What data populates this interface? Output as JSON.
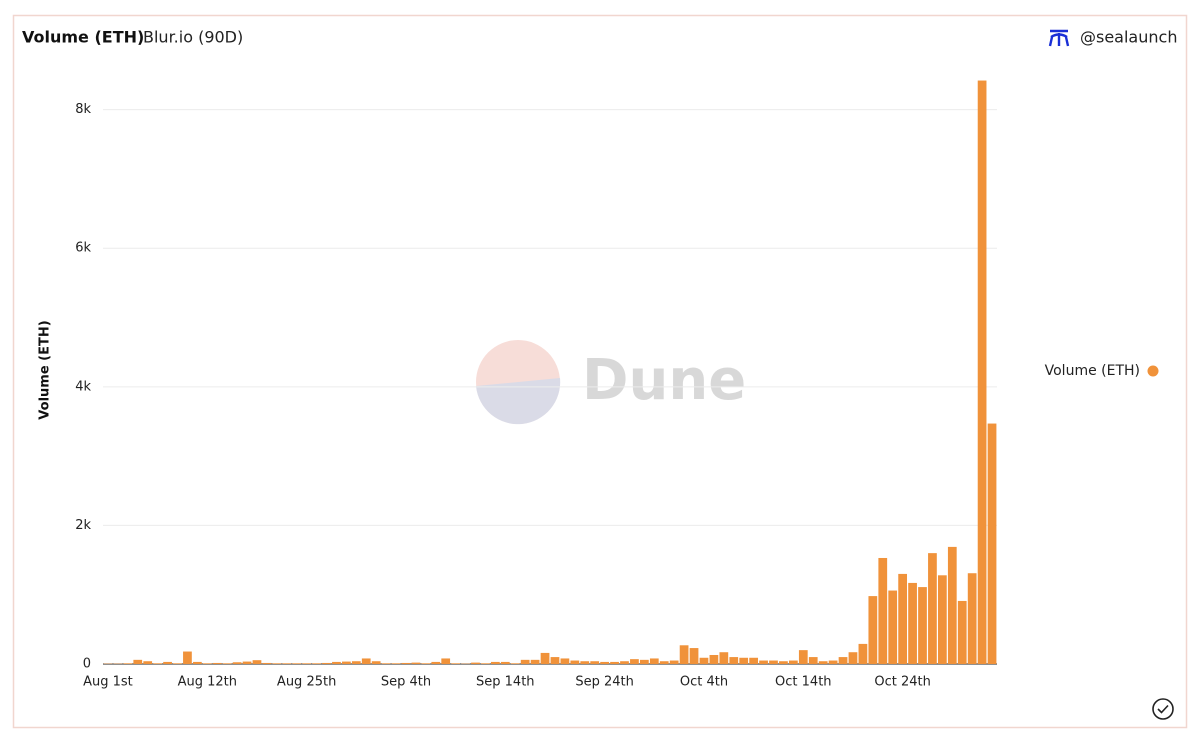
{
  "chart_data": {
    "type": "bar",
    "title": "Volume (ETH)",
    "subtitle": "Blur.io (90D)",
    "author": "@sealaunch",
    "watermark": "Dune",
    "y_label": "Volume (ETH)",
    "categories": [
      "Aug 1st",
      null,
      null,
      null,
      null,
      null,
      null,
      null,
      null,
      null,
      "Aug 12th",
      null,
      null,
      null,
      null,
      null,
      null,
      null,
      null,
      null,
      "Aug 25th",
      null,
      null,
      null,
      null,
      null,
      null,
      null,
      null,
      null,
      "Sep 4th",
      null,
      null,
      null,
      null,
      null,
      null,
      null,
      null,
      null,
      "Sep 14th",
      null,
      null,
      null,
      null,
      null,
      null,
      null,
      null,
      null,
      "Sep 24th",
      null,
      null,
      null,
      null,
      null,
      null,
      null,
      null,
      null,
      "Oct 4th",
      null,
      null,
      null,
      null,
      null,
      null,
      null,
      null,
      null,
      "Oct 14th",
      null,
      null,
      null,
      null,
      null,
      null,
      null,
      null,
      null,
      "Oct 24th",
      null,
      null,
      null,
      null,
      null,
      null,
      null,
      null,
      null
    ],
    "series": [
      {
        "name": "Volume (ETH)",
        "color": "#f0923a",
        "values": [
          5,
          5,
          10,
          60,
          40,
          10,
          30,
          10,
          180,
          30,
          10,
          15,
          10,
          25,
          35,
          55,
          15,
          10,
          10,
          10,
          10,
          10,
          15,
          30,
          35,
          40,
          80,
          40,
          10,
          10,
          15,
          20,
          10,
          30,
          80,
          10,
          5,
          20,
          10,
          30,
          30,
          10,
          60,
          60,
          160,
          100,
          80,
          50,
          40,
          40,
          30,
          30,
          40,
          70,
          60,
          80,
          40,
          50,
          270,
          230,
          90,
          130,
          170,
          100,
          90,
          90,
          50,
          50,
          40,
          50,
          200,
          100,
          40,
          50,
          100,
          170,
          290,
          980,
          1530,
          1060,
          1300,
          1170,
          1110,
          1600,
          1280,
          1690,
          910,
          1310,
          8420,
          3470
        ]
      }
    ],
    "ylim": [
      0,
      8500
    ],
    "yticks": [
      0,
      {
        "value": 2000,
        "label": "2k"
      },
      {
        "value": 4000,
        "label": "4k"
      },
      {
        "value": 6000,
        "label": "6k"
      },
      {
        "value": 8000,
        "label": "8k"
      }
    ],
    "grid": true,
    "legend": "right"
  }
}
